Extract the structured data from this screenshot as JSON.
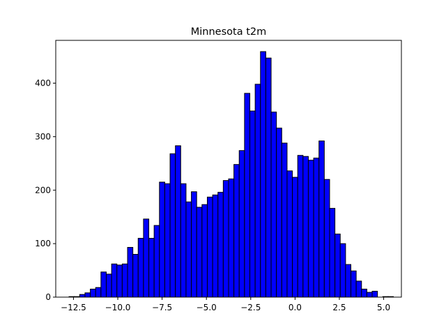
{
  "chart_data": {
    "type": "bar",
    "title": "Minnesota t2m",
    "xlabel": "",
    "ylabel": "",
    "xlim": [
      -13.5,
      6.0
    ],
    "ylim": [
      0,
      480
    ],
    "xticks": [
      -12.5,
      -10.0,
      -7.5,
      -5.0,
      -2.5,
      0.0,
      2.5,
      5.0
    ],
    "xtick_labels": [
      "−12.5",
      "−10.0",
      "−7.5",
      "−5.0",
      "−2.5",
      "0.0",
      "2.5",
      "5.0"
    ],
    "yticks": [
      0,
      100,
      200,
      300,
      400
    ],
    "ytick_labels": [
      "0",
      "100",
      "200",
      "300",
      "400"
    ],
    "bar_color": "#0000ff",
    "edge_color": "#000000",
    "grid": false,
    "bin_start": -12.75,
    "bin_width": 0.3,
    "values": [
      1,
      1,
      5,
      8,
      15,
      18,
      47,
      43,
      62,
      60,
      62,
      93,
      80,
      110,
      146,
      110,
      134,
      215,
      212,
      268,
      283,
      212,
      178,
      197,
      168,
      173,
      187,
      191,
      196,
      218,
      221,
      248,
      274,
      381,
      348,
      398,
      459,
      447,
      346,
      316,
      288,
      236,
      224,
      265,
      263,
      256,
      260,
      292,
      220,
      166,
      118,
      100,
      61,
      49,
      30,
      15,
      9,
      11,
      0,
      1,
      1
    ]
  }
}
